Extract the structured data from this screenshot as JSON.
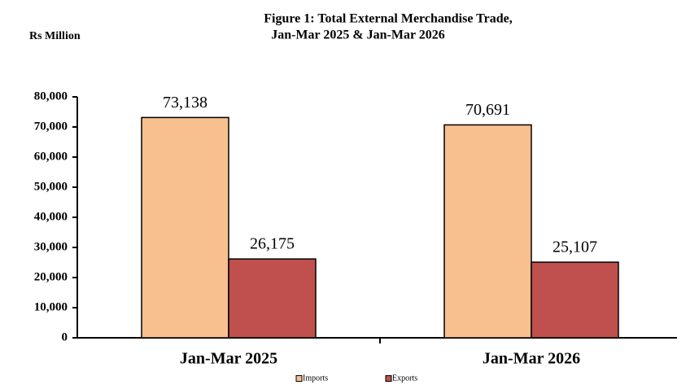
{
  "chart_data": {
    "type": "bar",
    "title": [
      "Figure 1: Total  External Merchandise Trade,",
      "Jan-Mar 2025 & Jan-Mar 2026"
    ],
    "y_label": "Rs Million",
    "categories": [
      "Jan-Mar 2025",
      "Jan-Mar 2026"
    ],
    "series": [
      {
        "name": "Imports",
        "color": "#f9c08f",
        "values": [
          73138,
          70691
        ],
        "value_labels": [
          "73,138",
          "70,691"
        ]
      },
      {
        "name": "Exports",
        "color": "#c0504d",
        "values": [
          26175,
          25107
        ],
        "value_labels": [
          "26,175",
          "25,107"
        ]
      }
    ],
    "ylim": [
      0,
      80000
    ],
    "yticks": [
      0,
      {
        "value": 10000,
        "label": "10,000"
      },
      {
        "value": 20000,
        "label": "20,000"
      },
      {
        "value": 30000,
        "label": "30,000"
      },
      {
        "value": 40000,
        "label": "40,000"
      },
      {
        "value": 50000,
        "label": "50,000"
      },
      {
        "value": 60000,
        "label": "60,000"
      },
      {
        "value": 70000,
        "label": "70,000"
      },
      {
        "value": 80000,
        "label": "80,000"
      }
    ],
    "grid": false,
    "legend": "bottom"
  }
}
